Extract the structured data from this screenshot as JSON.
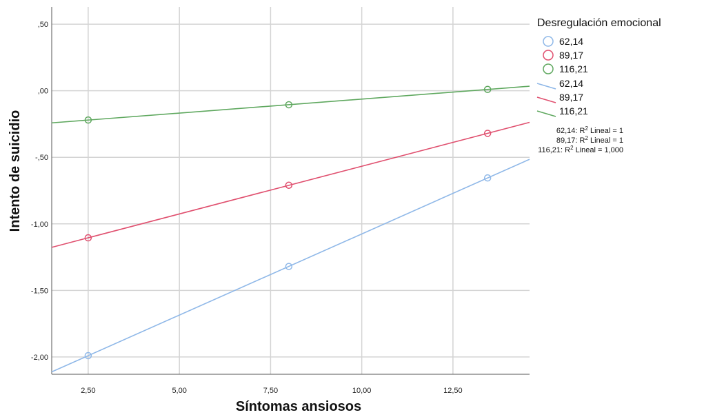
{
  "chart_data": {
    "type": "scatter",
    "xlabel": "Síntomas ansiosos",
    "ylabel": "Intento de suicidio",
    "xlim": [
      1.5,
      14.6
    ],
    "ylim": [
      -2.13,
      0.63
    ],
    "x_ticks": [
      2.5,
      5.0,
      7.5,
      10.0,
      12.5
    ],
    "x_tick_labels": [
      "2,50",
      "5,00",
      "7,50",
      "10,00",
      "12,50"
    ],
    "y_ticks": [
      0.5,
      0.0,
      -0.5,
      -1.0,
      -1.5,
      -2.0
    ],
    "y_tick_labels": [
      ",50",
      ",00",
      "-,50",
      "-1,00",
      "-1,50",
      "-2,00"
    ],
    "grid": true,
    "legend": {
      "title": "Desregulación emocional",
      "placement": "right",
      "marker_labels": [
        "62,14",
        "89,17",
        "116,21"
      ],
      "line_labels": [
        "62,14",
        "89,17",
        "116,21"
      ]
    },
    "fit_labels": [
      {
        "prefix": "62,14: R",
        "sup": "2",
        "suffix": " Lineal = 1"
      },
      {
        "prefix": "89,17: R",
        "sup": "2",
        "suffix": " Lineal = 1"
      },
      {
        "prefix": "116,21: R",
        "sup": "2",
        "suffix": " Lineal = 1,000"
      }
    ],
    "series": [
      {
        "name": "62,14",
        "color": "#8fb8e8",
        "x": [
          2.5,
          8.0,
          13.45
        ],
        "y": [
          -1.99,
          -1.32,
          -0.655
        ]
      },
      {
        "name": "89,17",
        "color": "#e0506f",
        "x": [
          2.5,
          8.0,
          13.45
        ],
        "y": [
          -1.105,
          -0.71,
          -0.32
        ]
      },
      {
        "name": "116,21",
        "color": "#5fa85f",
        "x": [
          2.5,
          8.0,
          13.45
        ],
        "y": [
          -0.22,
          -0.105,
          0.01
        ]
      }
    ]
  }
}
